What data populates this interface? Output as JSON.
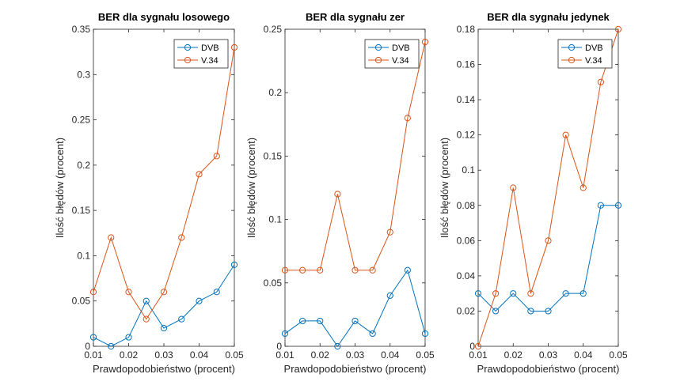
{
  "colors": {
    "DVB": "#0072BD",
    "V.34": "#D95319",
    "axis": "#262626"
  },
  "chart_data": [
    {
      "type": "line",
      "title": "BER dla sygnału losowego",
      "xlabel": "Prawdopodobieństwo (procent)",
      "ylabel": "Ilość błędów (procent)",
      "x": [
        0.01,
        0.015,
        0.02,
        0.025,
        0.03,
        0.035,
        0.04,
        0.045,
        0.05
      ],
      "xlim": [
        0.01,
        0.05
      ],
      "ylim": [
        0,
        0.35
      ],
      "xticks": [
        "0.01",
        "0.02",
        "0.03",
        "0.04",
        "0.05"
      ],
      "yticks": [
        "0",
        "0.05",
        "0.1",
        "0.15",
        "0.2",
        "0.25",
        "0.3",
        "0.35"
      ],
      "legend_position": "top-right",
      "series": [
        {
          "name": "DVB",
          "values": [
            0.01,
            0,
            0.01,
            0.05,
            0.02,
            0.03,
            0.05,
            0.06,
            0.09
          ]
        },
        {
          "name": "V.34",
          "values": [
            0.06,
            0.12,
            0.06,
            0.03,
            0.06,
            0.12,
            0.19,
            0.21,
            0.33
          ]
        }
      ]
    },
    {
      "type": "line",
      "title": "BER dla sygnału zer",
      "xlabel": "Prawdopodobieństwo (procent)",
      "ylabel": "Ilość błędów (procent)",
      "x": [
        0.01,
        0.015,
        0.02,
        0.025,
        0.03,
        0.035,
        0.04,
        0.045,
        0.05
      ],
      "xlim": [
        0.01,
        0.05
      ],
      "ylim": [
        0,
        0.25
      ],
      "xticks": [
        "0.01",
        "0.02",
        "0.03",
        "0.04",
        "0.05"
      ],
      "yticks": [
        "0",
        "0.05",
        "0.1",
        "0.15",
        "0.2",
        "0.25"
      ],
      "legend_position": "top-right",
      "series": [
        {
          "name": "DVB",
          "values": [
            0.01,
            0.02,
            0.02,
            0,
            0.02,
            0.01,
            0.04,
            0.06,
            0.01
          ]
        },
        {
          "name": "V.34",
          "values": [
            0.06,
            0.06,
            0.06,
            0.12,
            0.06,
            0.06,
            0.09,
            0.18,
            0.24
          ]
        }
      ]
    },
    {
      "type": "line",
      "title": "BER dla sygnału jedynek",
      "xlabel": "Prawdopodobieństwo (procent)",
      "ylabel": "Ilość błędów (procent)",
      "x": [
        0.01,
        0.015,
        0.02,
        0.025,
        0.03,
        0.035,
        0.04,
        0.045,
        0.05
      ],
      "xlim": [
        0.01,
        0.05
      ],
      "ylim": [
        0,
        0.18
      ],
      "xticks": [
        "0.01",
        "0.02",
        "0.03",
        "0.04",
        "0.05"
      ],
      "yticks": [
        "0",
        "0.02",
        "0.04",
        "0.06",
        "0.08",
        "0.1",
        "0.12",
        "0.14",
        "0.16",
        "0.18"
      ],
      "legend_position": "top-right",
      "series": [
        {
          "name": "DVB",
          "values": [
            0.03,
            0.02,
            0.03,
            0.02,
            0.02,
            0.03,
            0.03,
            0.08,
            0.08
          ]
        },
        {
          "name": "V.34",
          "values": [
            0,
            0.03,
            0.09,
            0.03,
            0.06,
            0.12,
            0.09,
            0.15,
            0.18
          ]
        }
      ]
    }
  ]
}
